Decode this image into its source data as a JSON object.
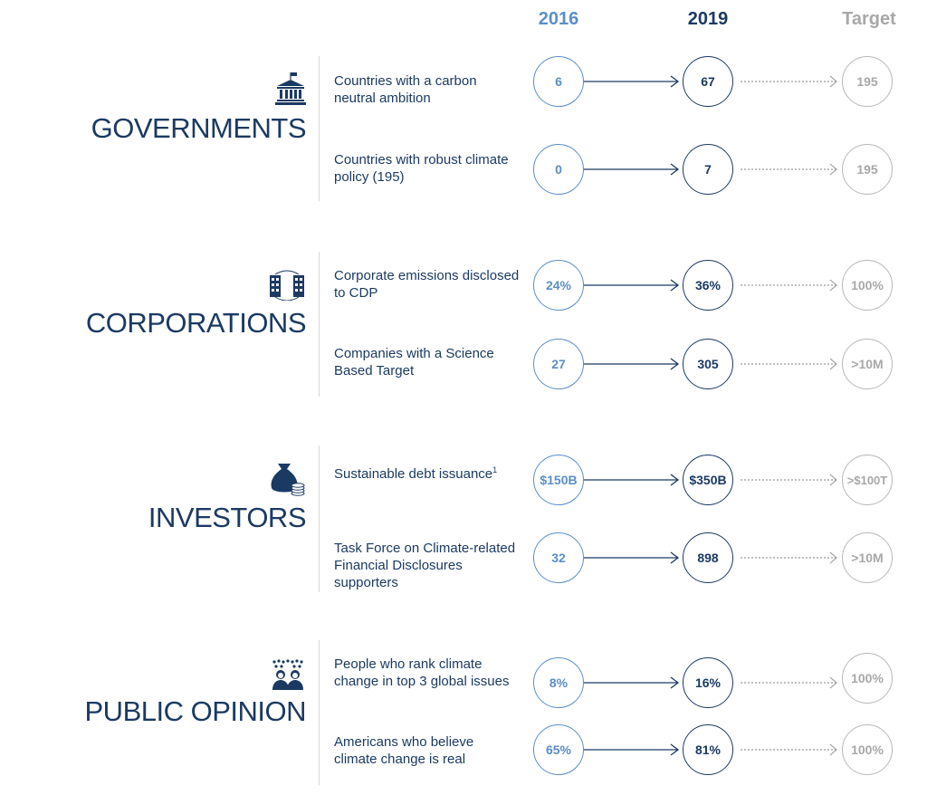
{
  "columns": {
    "year1": "2016",
    "year2": "2019",
    "target": "Target"
  },
  "colors": {
    "light_blue": "#5b8ec9",
    "navy": "#1b3a63",
    "grey": "#a8a8a8"
  },
  "sections": [
    {
      "title": "GOVERNMENTS",
      "icon": "capitol-building-icon",
      "metrics": [
        {
          "label": "Countries with a carbon neutral ambition",
          "v2016": "6",
          "v2019": "67",
          "target": "195"
        },
        {
          "label": "Countries with robust climate policy (195)",
          "v2016": "0",
          "v2019": "7",
          "target": "195"
        }
      ]
    },
    {
      "title": "CORPORATIONS",
      "icon": "office-buildings-icon",
      "metrics": [
        {
          "label": "Corporate emissions disclosed to CDP",
          "v2016": "24%",
          "v2019": "36%",
          "target": "100%"
        },
        {
          "label": "Companies with a Science Based Target",
          "v2016": "27",
          "v2019": "305",
          "target": ">10M"
        }
      ]
    },
    {
      "title": "INVESTORS",
      "icon": "money-bag-coins-icon",
      "metrics": [
        {
          "label": "Sustainable debt issuance",
          "footnote": "1",
          "v2016": "$150B",
          "v2019": "$350B",
          "target": ">$100T"
        },
        {
          "label": "Task Force on Climate-related Financial Disclosures supporters",
          "v2016": "32",
          "v2019": "898",
          "target": ">10M"
        }
      ]
    },
    {
      "title": "PUBLIC OPINION",
      "icon": "people-group-icon",
      "metrics": [
        {
          "label": "People who rank climate change in top 3 global issues",
          "v2016": "8%",
          "v2019": "16%",
          "target": "100%"
        },
        {
          "label": "Americans who believe climate change is real",
          "v2016": "65%",
          "v2019": "81%",
          "target": "100%"
        }
      ]
    }
  ]
}
